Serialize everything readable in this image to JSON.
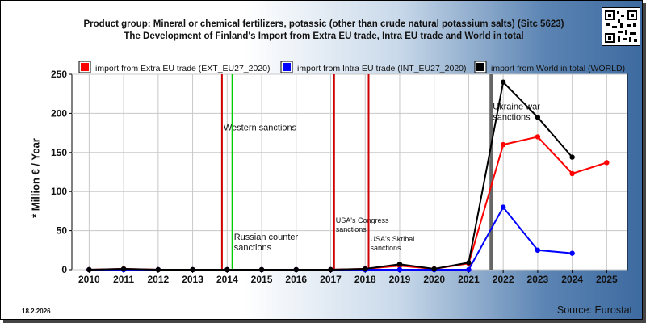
{
  "header": {
    "title_line1": "Product group: Mineral or chemical fertilizers, potassic (other than crude natural potassium salts) (Sitc 5623)",
    "title_line2": "The Development of Finland's Import from Extra EU trade, Intra EU trade and World in total"
  },
  "footer": {
    "date": "18.2.2026",
    "source": "Source: Eurostat"
  },
  "colors": {
    "extra": "#ff0000",
    "intra": "#0000ff",
    "world": "#000000",
    "sanction_red": "#cc0000",
    "sanction_green": "#00cc00",
    "sanction_gray": "#666666"
  },
  "chart_data": {
    "type": "line",
    "ylabel": "* Million € / Year",
    "xlabel": "",
    "ylim": [
      0,
      250
    ],
    "yticks": [
      0,
      50,
      100,
      150,
      200,
      250
    ],
    "x": [
      2010,
      2011,
      2012,
      2013,
      2014,
      2015,
      2016,
      2017,
      2018,
      2019,
      2020,
      2021,
      2022,
      2023,
      2024,
      2025
    ],
    "grid": true,
    "legend_position": "top",
    "series": [
      {
        "name": "import from Extra EU trade (EXT_EU27_2020)",
        "color": "#ff0000",
        "values": [
          0,
          1,
          0,
          0,
          0,
          0,
          0,
          0,
          1,
          5,
          1,
          8,
          160,
          170,
          123,
          137
        ]
      },
      {
        "name": "import from Intra EU trade (INT_EU27_2020)",
        "color": "#0000ff",
        "values": [
          0,
          0,
          0,
          0,
          0,
          0,
          0,
          0,
          0,
          0,
          0,
          0,
          80,
          25,
          21,
          null
        ]
      },
      {
        "name": "import from World in total (WORLD)",
        "color": "#000000",
        "values": [
          0,
          1,
          0,
          0,
          0,
          0,
          0,
          0,
          1,
          7,
          1,
          9,
          240,
          195,
          144,
          null
        ]
      }
    ],
    "events": [
      {
        "label": "Western sanctions",
        "x": 2013.85,
        "color": "#cc0000",
        "label_y": 178
      },
      {
        "label": "Russian counter sanctions",
        "x": 2014.15,
        "color": "#00cc00",
        "label_y": 38
      },
      {
        "label": "USA's Congress sanctions",
        "x": 2017.1,
        "color": "#cc0000",
        "label_y": 60
      },
      {
        "label": "USA's Skribal sanctions",
        "x": 2018.1,
        "color": "#cc0000",
        "label_y": 36
      },
      {
        "label": "Ukraine war sanctions",
        "x": 2021.65,
        "color": "#666666",
        "label_y": 205
      }
    ]
  }
}
